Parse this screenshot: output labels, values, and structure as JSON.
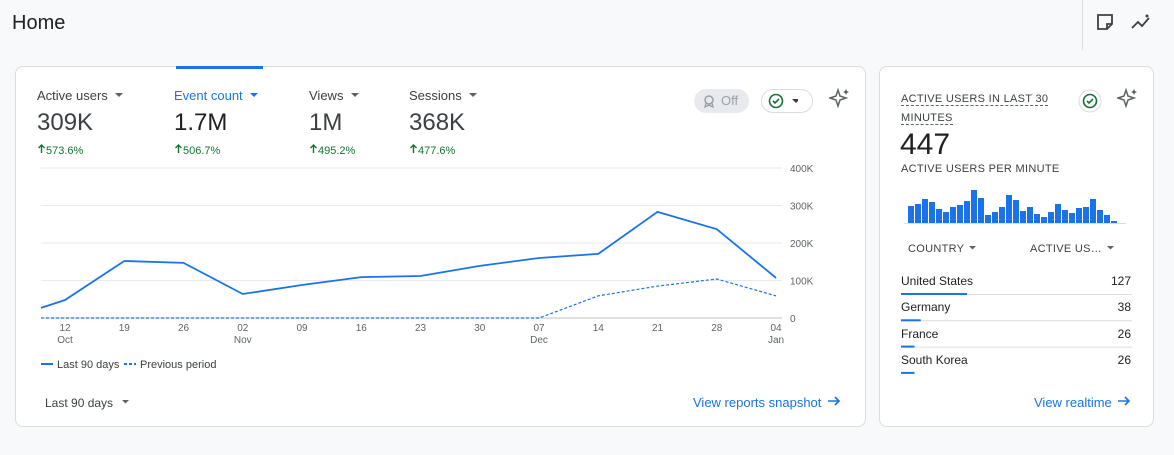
{
  "header": {
    "title": "Home"
  },
  "summary": {
    "metrics": [
      {
        "label": "Active users",
        "value": "309K",
        "change": "573.6%"
      },
      {
        "label": "Event count",
        "value": "1.7M",
        "change": "506.7%"
      },
      {
        "label": "Views",
        "value": "1M",
        "change": "495.2%"
      },
      {
        "label": "Sessions",
        "value": "368K",
        "change": "477.6%"
      }
    ],
    "toggle": "Off",
    "chart_data": {
      "type": "line",
      "categories": [
        null,
        "12",
        "19",
        "26",
        "02",
        "09",
        "16",
        "23",
        "30",
        "07",
        "14",
        "21",
        "28",
        "04"
      ],
      "month_labels": [
        null,
        "Oct",
        null,
        null,
        "Nov",
        null,
        null,
        null,
        null,
        "Dec",
        null,
        null,
        null,
        "Jan"
      ],
      "series": [
        {
          "name": "Last 90 days",
          "color": "#1a73e8",
          "style": "solid",
          "values": [
            27000,
            48000,
            152000,
            147000,
            64000,
            88000,
            109000,
            112000,
            139000,
            160000,
            171000,
            283000,
            237000,
            107000
          ]
        },
        {
          "name": "Previous period",
          "color": "#1a73e8",
          "style": "dashed",
          "values": [
            0,
            0,
            0,
            0,
            0,
            0,
            0,
            0,
            0,
            0,
            59000,
            85000,
            104000,
            59000
          ]
        }
      ],
      "ylim": [
        0,
        400000
      ],
      "yticks": [
        0,
        {
          "value": 100000,
          "label": "100K"
        },
        {
          "value": 200000,
          "label": "200K"
        },
        {
          "value": 300000,
          "label": "300K"
        },
        {
          "value": 400000,
          "label": "400K"
        }
      ],
      "grid": true,
      "legend": "bottom"
    },
    "date_range": "Last 90 days",
    "link": "View reports snapshot"
  },
  "realtime": {
    "title": "ACTIVE USERS IN LAST 30 MINUTES",
    "value": "447",
    "subtitle": "ACTIVE USERS PER MINUTE",
    "chart_data": {
      "type": "bar",
      "color": "#1a73e8",
      "values": [
        17,
        19,
        24,
        21,
        14,
        11,
        16,
        18,
        22,
        33,
        25,
        8,
        11,
        16,
        28,
        23,
        12,
        16,
        9,
        6,
        11,
        19,
        13,
        10,
        15,
        16,
        24,
        13,
        8,
        2
      ]
    },
    "table": {
      "headers": [
        "COUNTRY",
        "ACTIVE US…"
      ],
      "rows": [
        {
          "name": "United States",
          "value": 127
        },
        {
          "name": "Germany",
          "value": 38
        },
        {
          "name": "France",
          "value": 26
        },
        {
          "name": "South Korea",
          "value": 26
        }
      ]
    },
    "link": "View realtime"
  }
}
